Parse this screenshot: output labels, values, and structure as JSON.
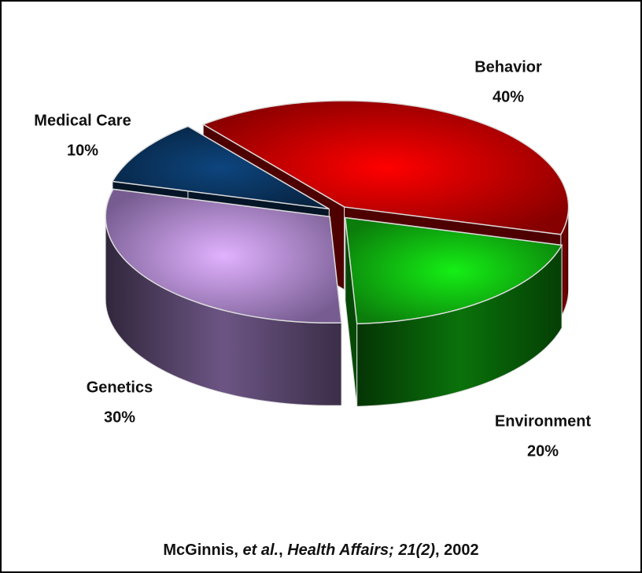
{
  "chart_data": {
    "type": "pie",
    "categories": [
      "Behavior",
      "Environment",
      "Genetics",
      "Medical Care"
    ],
    "values": [
      40,
      20,
      30,
      10
    ],
    "value_labels": [
      "40%",
      "20%",
      "30%",
      "10%"
    ],
    "colors": [
      "#e00000",
      "#12d012",
      "#c49af0",
      "#0b3c6e"
    ],
    "source": [
      "McGinnis, ",
      "et al.",
      ", ",
      "Health Affairs; 21(2)",
      ", 2002"
    ]
  }
}
